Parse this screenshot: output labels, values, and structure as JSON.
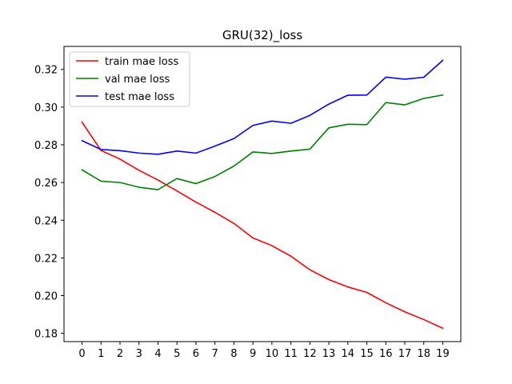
{
  "chart_data": {
    "type": "line",
    "title": "GRU(32)_loss",
    "xlabel": "",
    "ylabel": "",
    "x": [
      0,
      1,
      2,
      3,
      4,
      5,
      6,
      7,
      8,
      9,
      10,
      11,
      12,
      13,
      14,
      15,
      16,
      17,
      18,
      19
    ],
    "xlim": [
      -0.95,
      19.95
    ],
    "ylim": [
      0.1756,
      0.3322
    ],
    "yticks": [
      0.18,
      0.2,
      0.22,
      0.24,
      0.26,
      0.28,
      0.3,
      0.32
    ],
    "ytick_labels": [
      "0.18",
      "0.20",
      "0.22",
      "0.24",
      "0.26",
      "0.28",
      "0.30",
      "0.32"
    ],
    "grid": false,
    "legend_position": "upper-left",
    "series": [
      {
        "name": "train mae loss",
        "color": "#ff0000",
        "values": [
          0.292,
          0.277,
          0.2724,
          0.2665,
          0.2613,
          0.2555,
          0.2496,
          0.2442,
          0.2383,
          0.2306,
          0.2265,
          0.2209,
          0.2137,
          0.2085,
          0.2046,
          0.2017,
          0.1962,
          0.1914,
          0.1873,
          0.1827
        ]
      },
      {
        "name": "val mae loss",
        "color": "#008000",
        "values": [
          0.2667,
          0.2607,
          0.26,
          0.2575,
          0.2562,
          0.2621,
          0.2594,
          0.2632,
          0.2687,
          0.2762,
          0.2754,
          0.2767,
          0.2777,
          0.289,
          0.2909,
          0.2907,
          0.3024,
          0.3012,
          0.3046,
          0.3064
        ]
      },
      {
        "name": "test mae loss",
        "color": "#0000ff",
        "values": [
          0.2822,
          0.2775,
          0.2769,
          0.2756,
          0.275,
          0.2767,
          0.2756,
          0.2793,
          0.2833,
          0.2903,
          0.2926,
          0.2914,
          0.2956,
          0.3016,
          0.3063,
          0.3064,
          0.3159,
          0.3148,
          0.3158,
          0.3248
        ]
      }
    ]
  }
}
